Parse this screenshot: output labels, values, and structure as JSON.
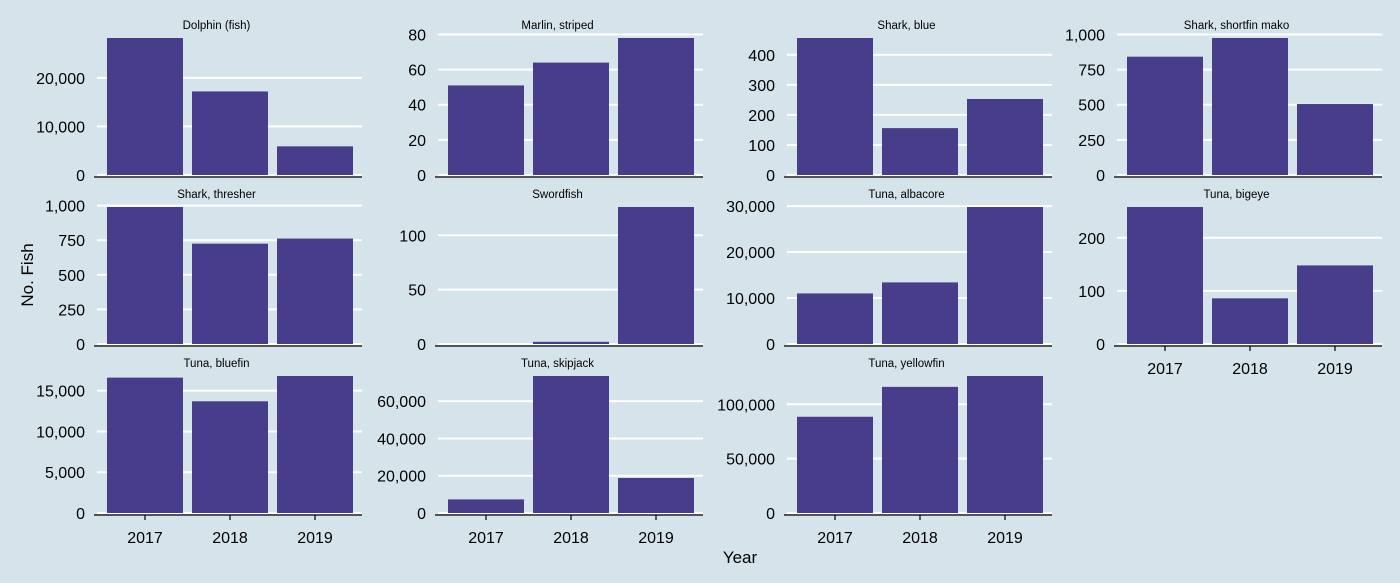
{
  "figure": {
    "ylabel": "No. Fish",
    "xlabel": "Year",
    "bar_color": "#483d8b",
    "background_color": "#d5e4eb",
    "gridline_color": "#ffffff"
  },
  "chart_data": [
    {
      "type": "bar",
      "title": "Dolphin (fish)",
      "categories": [
        "2017",
        "2018",
        "2019"
      ],
      "values": [
        28200,
        17200,
        5900
      ],
      "ylim": [
        0,
        28200
      ],
      "yticks": [
        0,
        10000,
        20000
      ],
      "ytick_labels": [
        "0",
        "10,000",
        "20,000"
      ],
      "show_xticks": false
    },
    {
      "type": "bar",
      "title": "Marlin, striped",
      "categories": [
        "2017",
        "2018",
        "2019"
      ],
      "values": [
        51,
        64,
        78
      ],
      "ylim": [
        0,
        78
      ],
      "yticks": [
        0,
        20,
        40,
        60,
        80
      ],
      "ytick_labels": [
        "0",
        "20",
        "40",
        "60",
        "80"
      ],
      "show_xticks": false
    },
    {
      "type": "bar",
      "title": "Shark, blue",
      "categories": [
        "2017",
        "2018",
        "2019"
      ],
      "values": [
        456,
        156,
        253
      ],
      "ylim": [
        0,
        456
      ],
      "yticks": [
        0,
        100,
        200,
        300,
        400
      ],
      "ytick_labels": [
        "0",
        "100",
        "200",
        "300",
        "400"
      ],
      "show_xticks": false
    },
    {
      "type": "bar",
      "title": "Shark, shortfin mako",
      "categories": [
        "2017",
        "2018",
        "2019"
      ],
      "values": [
        842,
        975,
        505
      ],
      "ylim": [
        0,
        975
      ],
      "yticks": [
        0,
        250,
        500,
        750,
        1000
      ],
      "ytick_labels": [
        "0",
        "250",
        "500",
        "750",
        "1,000"
      ],
      "show_xticks": false
    },
    {
      "type": "bar",
      "title": "Shark, thresher",
      "categories": [
        "2017",
        "2018",
        "2019"
      ],
      "values": [
        990,
        725,
        762
      ],
      "ylim": [
        0,
        990
      ],
      "yticks": [
        0,
        250,
        500,
        750,
        1000
      ],
      "ytick_labels": [
        "0",
        "250",
        "500",
        "750",
        "1,000"
      ],
      "show_xticks": false
    },
    {
      "type": "bar",
      "title": "Swordfish",
      "categories": [
        "2017",
        "2018",
        "2019"
      ],
      "values": [
        0,
        2,
        126
      ],
      "ylim": [
        0,
        126
      ],
      "yticks": [
        0,
        50,
        100
      ],
      "ytick_labels": [
        "0",
        "50",
        "100"
      ],
      "show_xticks": false
    },
    {
      "type": "bar",
      "title": "Tuna, albacore",
      "categories": [
        "2017",
        "2018",
        "2019"
      ],
      "values": [
        11000,
        13400,
        29800
      ],
      "ylim": [
        0,
        29800
      ],
      "yticks": [
        0,
        10000,
        20000,
        30000
      ],
      "ytick_labels": [
        "0",
        "10,000",
        "20,000",
        "30,000"
      ],
      "show_xticks": false
    },
    {
      "type": "bar",
      "title": "Tuna, bigeye",
      "categories": [
        "2017",
        "2018",
        "2019"
      ],
      "values": [
        258,
        86,
        148
      ],
      "ylim": [
        0,
        258
      ],
      "yticks": [
        0,
        100,
        200
      ],
      "ytick_labels": [
        "0",
        "100",
        "200"
      ],
      "show_xticks": true
    },
    {
      "type": "bar",
      "title": "Tuna, bluefin",
      "categories": [
        "2017",
        "2018",
        "2019"
      ],
      "values": [
        16600,
        13700,
        16800
      ],
      "ylim": [
        0,
        16800
      ],
      "yticks": [
        0,
        5000,
        10000,
        15000
      ],
      "ytick_labels": [
        "0",
        "5,000",
        "10,000",
        "15,000"
      ],
      "show_xticks": true
    },
    {
      "type": "bar",
      "title": "Tuna, skipjack",
      "categories": [
        "2017",
        "2018",
        "2019"
      ],
      "values": [
        7300,
        73500,
        18800
      ],
      "ylim": [
        0,
        73500
      ],
      "yticks": [
        0,
        20000,
        40000,
        60000
      ],
      "ytick_labels": [
        "0",
        "20,000",
        "40,000",
        "60,000"
      ],
      "show_xticks": true
    },
    {
      "type": "bar",
      "title": "Tuna, yellowfin",
      "categories": [
        "2017",
        "2018",
        "2019"
      ],
      "values": [
        88500,
        116000,
        126000
      ],
      "ylim": [
        0,
        126000
      ],
      "yticks": [
        0,
        50000,
        100000
      ],
      "ytick_labels": [
        "0",
        "50,000",
        "100,000"
      ],
      "show_xticks": true
    }
  ]
}
